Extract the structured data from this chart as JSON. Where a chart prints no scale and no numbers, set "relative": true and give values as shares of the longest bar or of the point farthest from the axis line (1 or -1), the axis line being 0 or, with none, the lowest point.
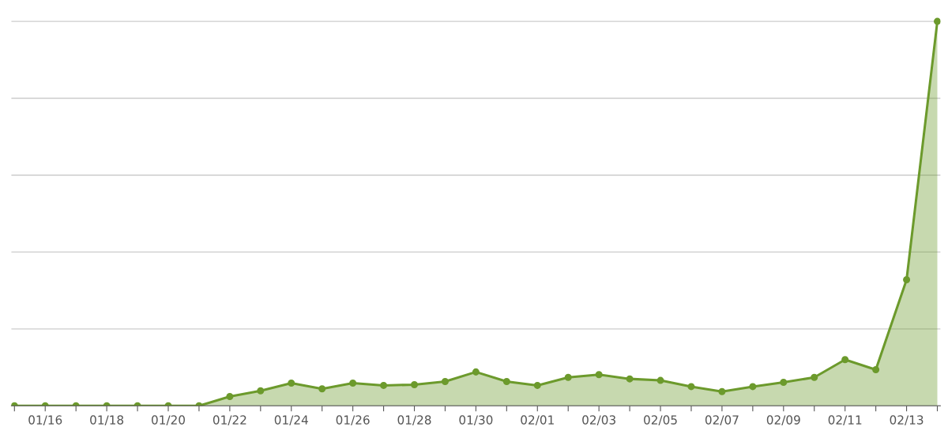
{
  "chart_data": {
    "type": "area",
    "relative": true,
    "categories": [
      null,
      "01/16",
      null,
      "01/18",
      null,
      "01/20",
      null,
      "01/22",
      null,
      "01/24",
      null,
      "01/26",
      null,
      "01/28",
      null,
      "01/30",
      null,
      "02/01",
      null,
      "02/03",
      null,
      "02/05",
      null,
      "02/07",
      null,
      "02/09",
      null,
      "02/11",
      null,
      "02/13",
      null
    ],
    "series": [
      {
        "color": "#6c9a2c",
        "values": [
          0,
          0,
          0,
          0,
          0,
          0,
          0,
          0.024,
          0.039,
          0.059,
          0.044,
          0.059,
          0.053,
          0.055,
          0.063,
          0.088,
          0.063,
          0.053,
          0.074,
          0.081,
          0.07,
          0.066,
          0.05,
          0.037,
          0.05,
          0.061,
          0.074,
          0.12,
          0.094,
          0.328,
          1
        ]
      }
    ],
    "marker": "circle",
    "grid": "y",
    "legend": false
  }
}
